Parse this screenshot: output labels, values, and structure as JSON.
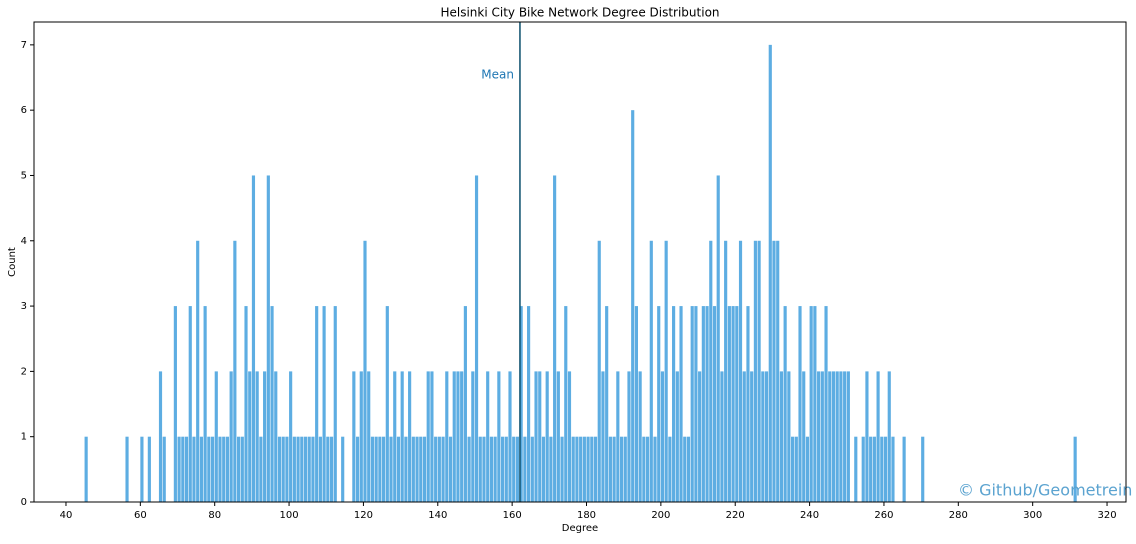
{
  "chart_data": {
    "type": "bar",
    "title": "Helsinki City Bike Network Degree Distribution",
    "xlabel": "Degree",
    "ylabel": "Count",
    "x": [
      45,
      56,
      60,
      62,
      65,
      66,
      69,
      70,
      71,
      72,
      73,
      74,
      75,
      76,
      77,
      78,
      79,
      80,
      81,
      82,
      83,
      84,
      85,
      86,
      87,
      88,
      89,
      90,
      91,
      92,
      93,
      94,
      95,
      96,
      97,
      98,
      99,
      100,
      101,
      102,
      103,
      104,
      105,
      106,
      107,
      108,
      109,
      110,
      111,
      112,
      114,
      117,
      118,
      119,
      120,
      121,
      122,
      123,
      124,
      125,
      126,
      127,
      128,
      129,
      130,
      131,
      132,
      133,
      134,
      135,
      136,
      137,
      138,
      139,
      140,
      141,
      142,
      143,
      144,
      145,
      146,
      147,
      148,
      149,
      150,
      151,
      152,
      153,
      154,
      155,
      156,
      157,
      158,
      159,
      160,
      161,
      162,
      163,
      164,
      165,
      166,
      167,
      168,
      169,
      170,
      171,
      172,
      173,
      174,
      175,
      176,
      177,
      178,
      179,
      180,
      181,
      182,
      183,
      184,
      185,
      186,
      187,
      188,
      189,
      190,
      191,
      192,
      193,
      194,
      195,
      196,
      197,
      198,
      199,
      200,
      201,
      202,
      203,
      204,
      205,
      206,
      207,
      208,
      209,
      210,
      211,
      212,
      213,
      214,
      215,
      216,
      217,
      218,
      219,
      220,
      221,
      222,
      223,
      224,
      225,
      226,
      227,
      228,
      229,
      230,
      231,
      232,
      233,
      234,
      235,
      236,
      237,
      238,
      239,
      240,
      241,
      242,
      243,
      244,
      245,
      246,
      247,
      248,
      249,
      250,
      252,
      254,
      255,
      256,
      257,
      258,
      259,
      260,
      261,
      262,
      265,
      270,
      311
    ],
    "values": [
      1,
      1,
      1,
      1,
      2,
      1,
      3,
      1,
      1,
      1,
      3,
      1,
      4,
      1,
      3,
      1,
      1,
      2,
      1,
      1,
      1,
      2,
      4,
      1,
      1,
      3,
      2,
      5,
      2,
      1,
      2,
      5,
      3,
      2,
      1,
      1,
      1,
      2,
      1,
      1,
      1,
      1,
      1,
      1,
      3,
      1,
      3,
      1,
      1,
      3,
      1,
      2,
      1,
      2,
      4,
      2,
      1,
      1,
      1,
      1,
      3,
      1,
      2,
      1,
      2,
      1,
      2,
      1,
      1,
      1,
      1,
      2,
      2,
      1,
      1,
      1,
      2,
      1,
      2,
      2,
      2,
      3,
      1,
      2,
      5,
      1,
      1,
      2,
      1,
      1,
      2,
      1,
      1,
      2,
      1,
      1,
      3,
      1,
      3,
      1,
      2,
      2,
      1,
      2,
      1,
      5,
      2,
      1,
      3,
      2,
      1,
      1,
      1,
      1,
      1,
      1,
      1,
      4,
      2,
      3,
      1,
      1,
      2,
      1,
      1,
      2,
      6,
      3,
      2,
      1,
      1,
      4,
      1,
      3,
      2,
      4,
      1,
      3,
      2,
      3,
      1,
      1,
      3,
      3,
      2,
      3,
      3,
      4,
      3,
      5,
      2,
      4,
      3,
      3,
      3,
      4,
      2,
      3,
      2,
      4,
      4,
      2,
      2,
      7,
      4,
      4,
      2,
      3,
      2,
      1,
      1,
      3,
      2,
      1,
      3,
      3,
      2,
      2,
      3,
      2,
      2,
      2,
      2,
      2,
      2,
      1,
      1,
      2,
      1,
      1,
      2,
      1,
      1,
      2,
      1,
      1,
      1,
      1
    ],
    "color": "#5dade2",
    "mean": 162.1,
    "mean_label": "Mean",
    "mean_color": "#0b4f6c",
    "watermark": "© Github/Geometrein",
    "xlim": [
      31.4,
      325.1
    ],
    "xticks": [
      40,
      60,
      80,
      100,
      120,
      140,
      160,
      180,
      200,
      220,
      240,
      260,
      280,
      300,
      320
    ],
    "ylim": [
      0,
      7.35
    ],
    "yticks": [
      0,
      1,
      2,
      3,
      4,
      5,
      6,
      7
    ],
    "grid": false
  }
}
